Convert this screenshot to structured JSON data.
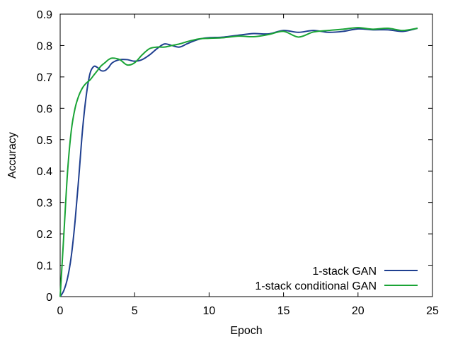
{
  "chart_data": {
    "type": "line",
    "title": "",
    "xlabel": "Epoch",
    "ylabel": "Accuracy",
    "xlim": [
      0,
      25
    ],
    "ylim": [
      0,
      0.9
    ],
    "xticks": [
      "0",
      "5",
      "10",
      "15",
      "20",
      "25"
    ],
    "yticks": [
      "0",
      "0.1",
      "0.2",
      "0.3",
      "0.4",
      "0.5",
      "0.6",
      "0.7",
      "0.8",
      "0.9"
    ],
    "grid": false,
    "legend_position": "bottom-right",
    "series": [
      {
        "name": "1-stack GAN",
        "color": "#1f3f8f",
        "x": [
          0,
          0.25,
          0.5,
          0.75,
          1.0,
          1.25,
          1.5,
          1.75,
          2.0,
          2.25,
          2.5,
          2.75,
          3.0,
          3.25,
          3.5,
          4.0,
          4.5,
          5.0,
          5.5,
          6.0,
          6.5,
          7.0,
          7.5,
          8.0,
          8.5,
          9.0,
          9.5,
          10.0,
          11.0,
          12.0,
          13.0,
          14.0,
          15.0,
          16.0,
          17.0,
          18.0,
          19.0,
          20.0,
          21.0,
          22.0,
          23.0,
          24.0
        ],
        "y": [
          0.0,
          0.02,
          0.06,
          0.13,
          0.24,
          0.38,
          0.53,
          0.64,
          0.71,
          0.733,
          0.73,
          0.72,
          0.72,
          0.73,
          0.745,
          0.755,
          0.755,
          0.75,
          0.755,
          0.77,
          0.79,
          0.805,
          0.8,
          0.795,
          0.805,
          0.815,
          0.822,
          0.825,
          0.827,
          0.833,
          0.838,
          0.837,
          0.848,
          0.842,
          0.848,
          0.842,
          0.845,
          0.853,
          0.85,
          0.85,
          0.845,
          0.855
        ]
      },
      {
        "name": "1-stack conditional GAN",
        "color": "#1aa436",
        "x": [
          0,
          0.25,
          0.5,
          0.75,
          1.0,
          1.25,
          1.5,
          1.75,
          2.0,
          2.25,
          2.5,
          2.75,
          3.0,
          3.25,
          3.5,
          4.0,
          4.5,
          5.0,
          5.5,
          6.0,
          6.5,
          7.0,
          7.5,
          8.0,
          8.5,
          9.0,
          9.5,
          10.0,
          11.0,
          12.0,
          13.0,
          14.0,
          15.0,
          16.0,
          17.0,
          18.0,
          19.0,
          20.0,
          21.0,
          22.0,
          23.0,
          24.0
        ],
        "y": [
          0.0,
          0.2,
          0.4,
          0.53,
          0.6,
          0.64,
          0.665,
          0.68,
          0.69,
          0.705,
          0.72,
          0.735,
          0.745,
          0.755,
          0.76,
          0.755,
          0.738,
          0.745,
          0.77,
          0.79,
          0.795,
          0.795,
          0.8,
          0.805,
          0.812,
          0.818,
          0.822,
          0.823,
          0.825,
          0.83,
          0.828,
          0.835,
          0.845,
          0.827,
          0.843,
          0.848,
          0.852,
          0.857,
          0.852,
          0.855,
          0.848,
          0.855
        ]
      }
    ]
  }
}
